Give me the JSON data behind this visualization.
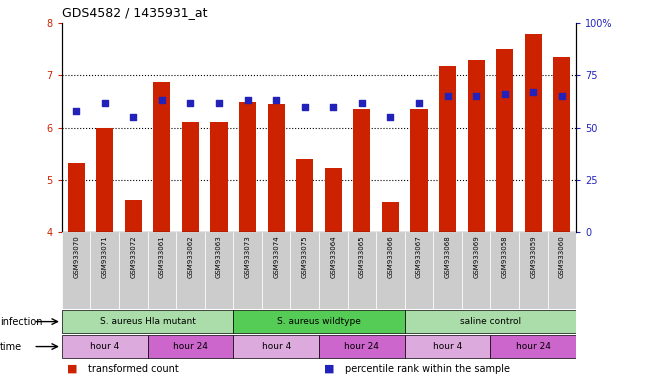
{
  "title": "GDS4582 / 1435931_at",
  "samples": [
    "GSM933070",
    "GSM933071",
    "GSM933072",
    "GSM933061",
    "GSM933062",
    "GSM933063",
    "GSM933073",
    "GSM933074",
    "GSM933075",
    "GSM933064",
    "GSM933065",
    "GSM933066",
    "GSM933067",
    "GSM933068",
    "GSM933069",
    "GSM933058",
    "GSM933059",
    "GSM933060"
  ],
  "bar_values": [
    5.33,
    6.0,
    4.62,
    6.88,
    6.1,
    6.1,
    6.5,
    6.45,
    5.4,
    5.22,
    6.35,
    4.57,
    6.35,
    7.17,
    7.3,
    7.5,
    7.8,
    7.35
  ],
  "dot_values_pct": [
    58,
    62,
    55,
    63,
    62,
    62,
    63,
    63,
    60,
    60,
    62,
    55,
    62,
    65,
    65,
    66,
    67,
    65
  ],
  "ylim_left": [
    4.0,
    8.0
  ],
  "ylim_right": [
    0,
    100
  ],
  "yticks_left": [
    4,
    5,
    6,
    7,
    8
  ],
  "yticks_right": [
    0,
    25,
    50,
    75,
    100
  ],
  "ytick_labels_right": [
    "0",
    "25",
    "50",
    "75",
    "100%"
  ],
  "bar_color": "#CC2200",
  "dot_color": "#2222BB",
  "bar_bottom": 4.0,
  "infection_groups": [
    {
      "label": "S. aureus Hla mutant",
      "start": 0,
      "end": 6,
      "color": "#AADDAA"
    },
    {
      "label": "S. aureus wildtype",
      "start": 6,
      "end": 12,
      "color": "#55CC55"
    },
    {
      "label": "saline control",
      "start": 12,
      "end": 18,
      "color": "#AADDAA"
    }
  ],
  "time_groups": [
    {
      "label": "hour 4",
      "start": 0,
      "end": 3,
      "color": "#DDAADD"
    },
    {
      "label": "hour 24",
      "start": 3,
      "end": 6,
      "color": "#CC66CC"
    },
    {
      "label": "hour 4",
      "start": 6,
      "end": 9,
      "color": "#DDAADD"
    },
    {
      "label": "hour 24",
      "start": 9,
      "end": 12,
      "color": "#CC66CC"
    },
    {
      "label": "hour 4",
      "start": 12,
      "end": 15,
      "color": "#DDAADD"
    },
    {
      "label": "hour 24",
      "start": 15,
      "end": 18,
      "color": "#CC66CC"
    }
  ],
  "infection_label": "infection",
  "time_label": "time",
  "legend_entries": [
    {
      "color": "#CC2200",
      "label": "transformed count"
    },
    {
      "color": "#2222BB",
      "label": "percentile rank within the sample"
    }
  ],
  "sample_bg_color": "#CCCCCC",
  "left_tick_color": "#CC2200",
  "right_tick_color": "#2222BB"
}
